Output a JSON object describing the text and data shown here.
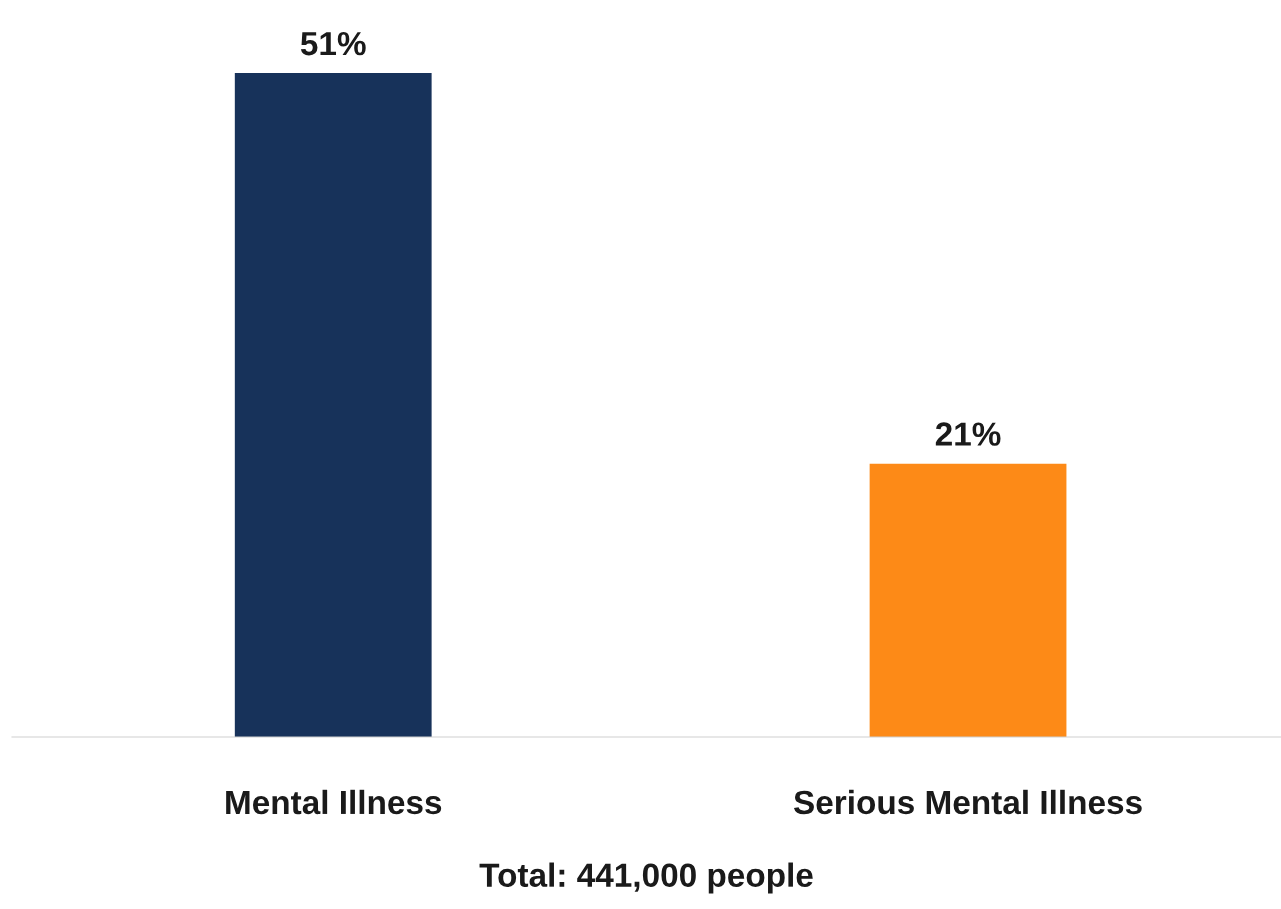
{
  "chart_data": {
    "type": "bar",
    "xlabel": "Total: 441,000 people",
    "categories": [
      "Mental Illness",
      "Serious Mental Illness"
    ],
    "values": [
      51,
      21
    ],
    "colors": [
      "#17325a",
      "#fd8a17"
    ],
    "data_labels": true,
    "value_labels": [
      "51%",
      "21%"
    ],
    "grid": false,
    "legend": false
  }
}
